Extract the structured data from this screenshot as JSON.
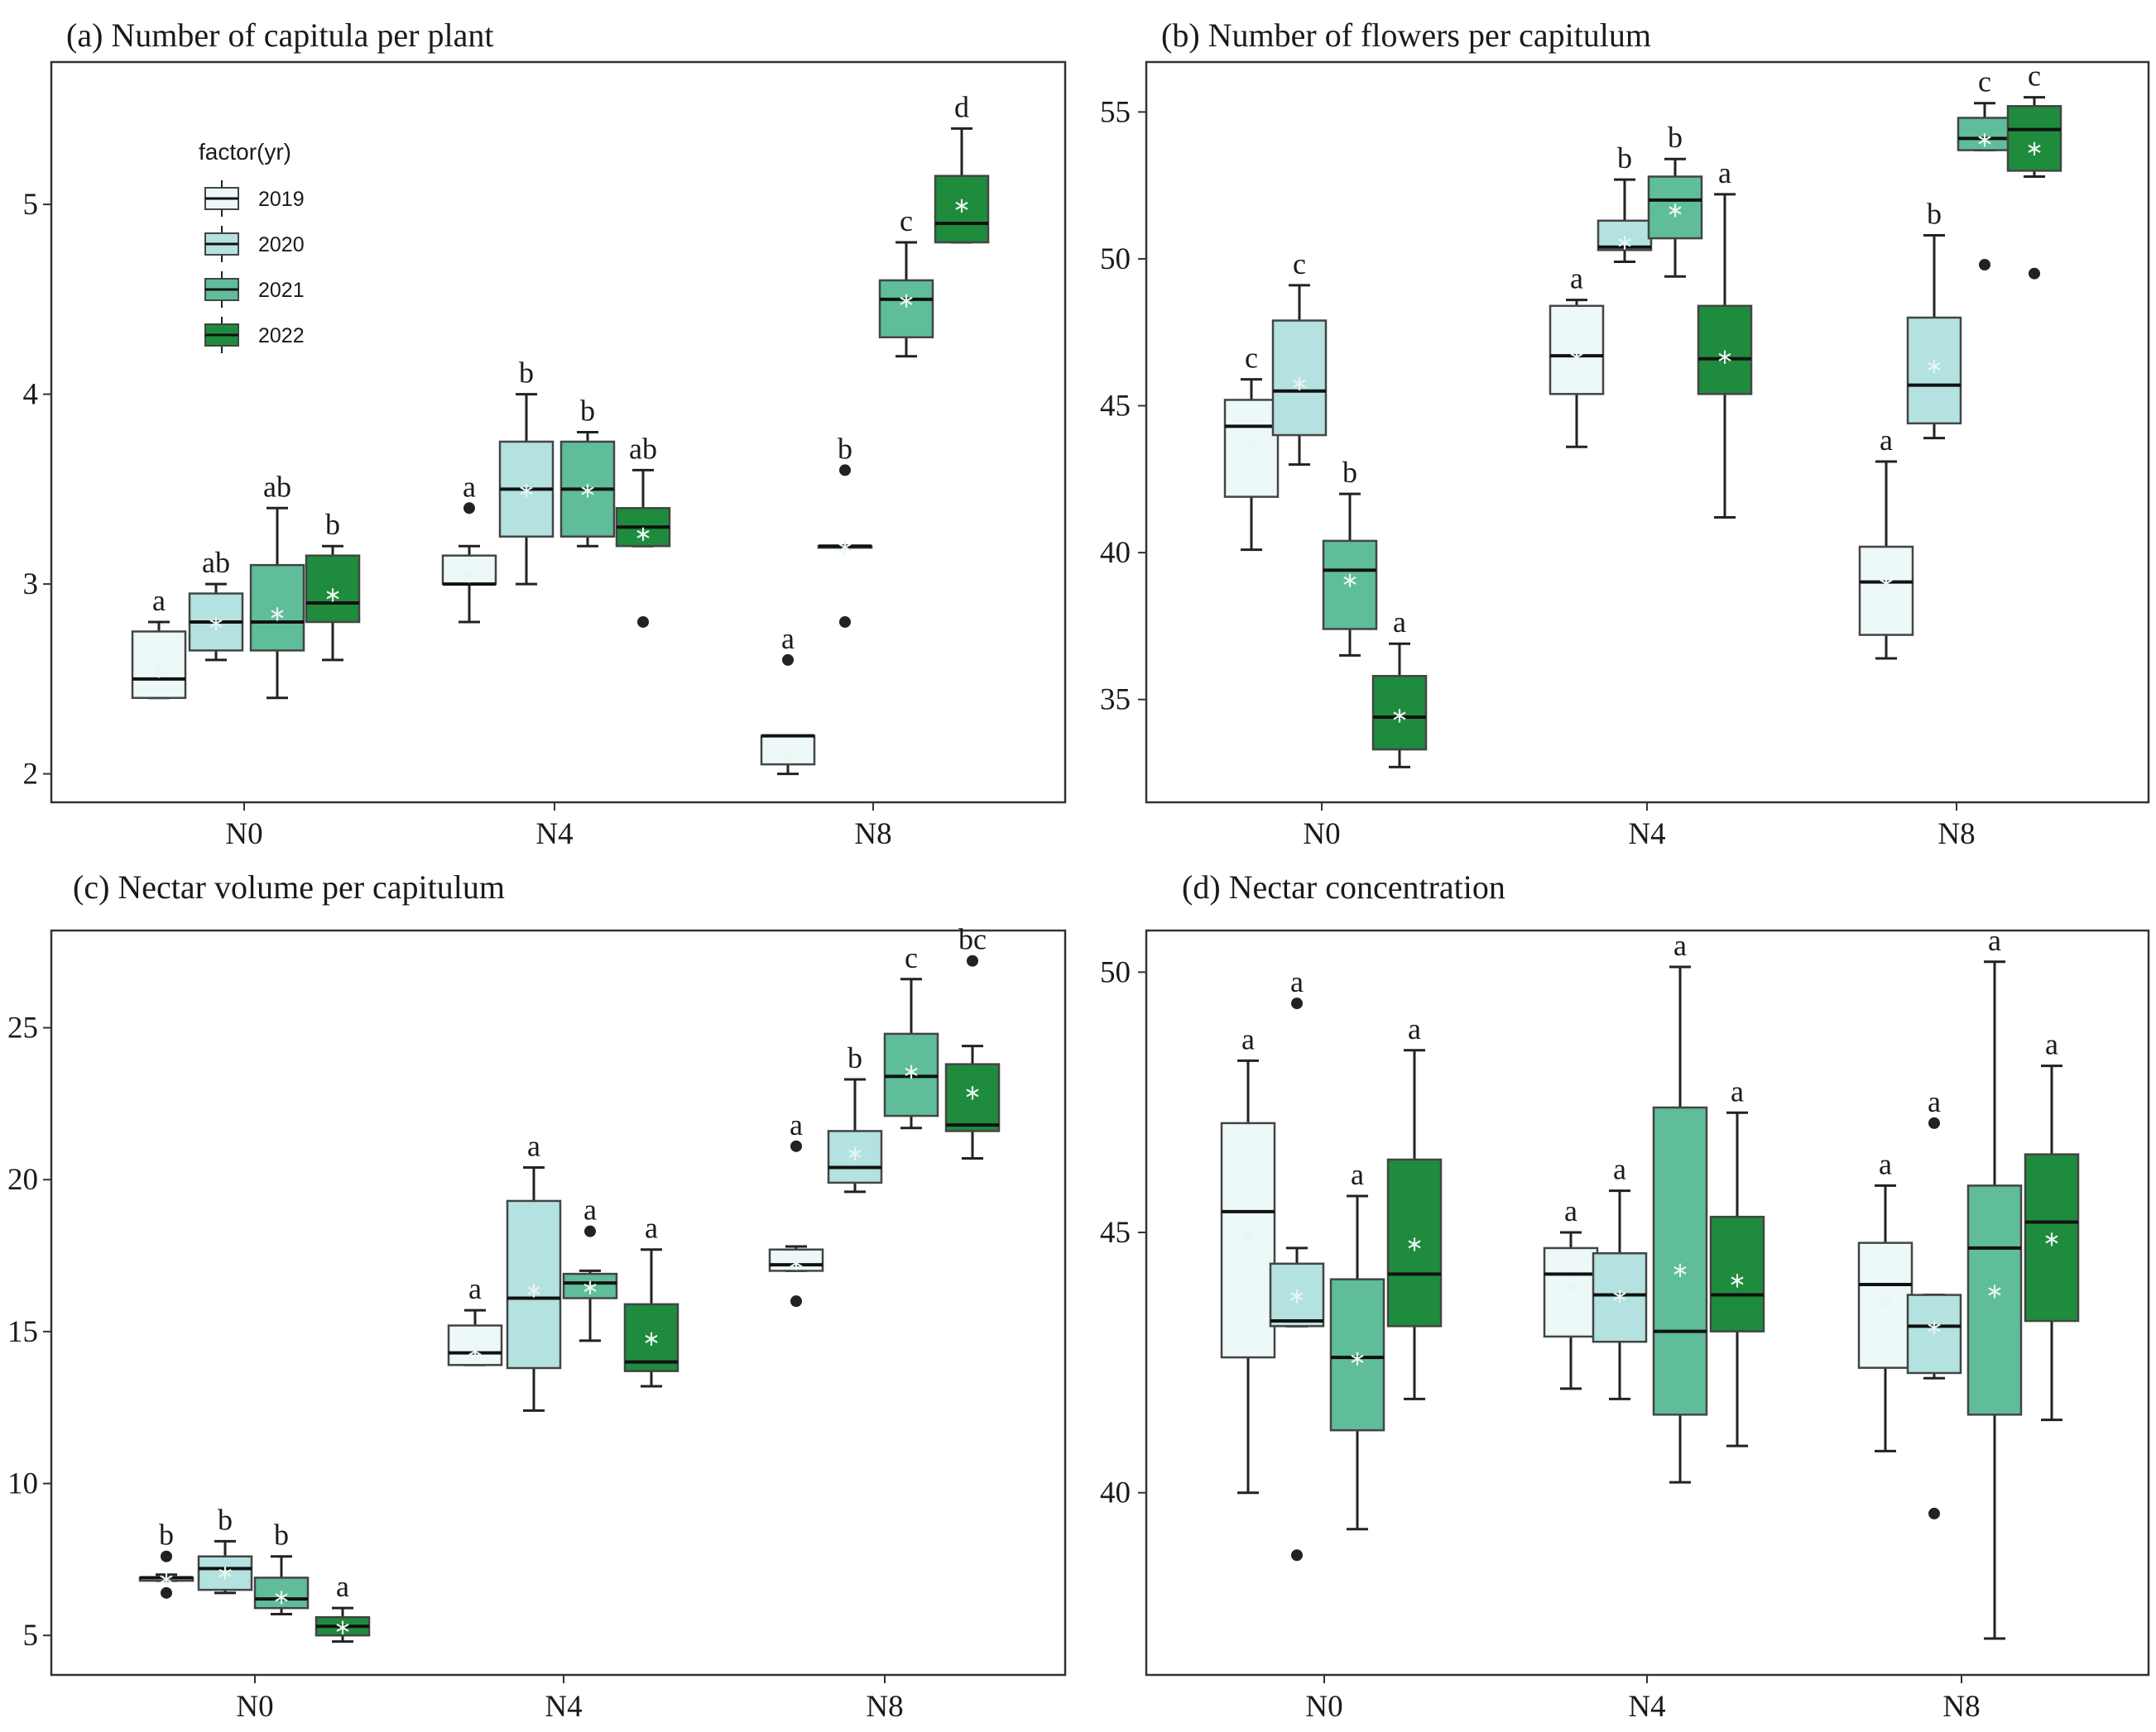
{
  "chart_data": [
    {
      "type": "boxplot",
      "title": "(a) Number of capitula per plant",
      "xlabel": "",
      "ylabel": "",
      "categories": [
        "N0",
        "N4",
        "N8"
      ],
      "ylim": [
        1.85,
        5.75
      ],
      "yticks": [
        "2",
        "3",
        "4",
        "5"
      ],
      "legend": {
        "title": "factor(yr)",
        "position": "top-left",
        "entries": [
          "2019",
          "2020",
          "2021",
          "2022"
        ]
      },
      "series": [
        {
          "name": "2019",
          "boxes": [
            {
              "q1": 2.4,
              "median": 2.5,
              "q3": 2.75,
              "min": 2.4,
              "max": 2.8,
              "mean": 2.55,
              "outliers": [],
              "letter": "a"
            },
            {
              "q1": 3.0,
              "median": 3.0,
              "q3": 3.15,
              "min": 2.8,
              "max": 3.2,
              "mean": 3.05,
              "outliers": [
                3.4
              ],
              "letter": "a"
            },
            {
              "q1": 2.05,
              "median": 2.2,
              "q3": 2.2,
              "min": 2.0,
              "max": 2.2,
              "mean": 2.1,
              "outliers": [
                2.6
              ],
              "letter": "a"
            }
          ]
        },
        {
          "name": "2020",
          "boxes": [
            {
              "q1": 2.65,
              "median": 2.8,
              "q3": 2.95,
              "min": 2.6,
              "max": 3.0,
              "mean": 2.8,
              "outliers": [],
              "letter": "ab"
            },
            {
              "q1": 3.25,
              "median": 3.5,
              "q3": 3.75,
              "min": 3.0,
              "max": 4.0,
              "mean": 3.5,
              "outliers": [],
              "letter": "b"
            },
            {
              "q1": 3.2,
              "median": 3.2,
              "q3": 3.2,
              "min": 3.2,
              "max": 3.2,
              "mean": 3.2,
              "outliers": [
                2.8,
                3.6
              ],
              "letter": "b"
            }
          ]
        },
        {
          "name": "2021",
          "boxes": [
            {
              "q1": 2.65,
              "median": 2.8,
              "q3": 3.1,
              "min": 2.4,
              "max": 3.4,
              "mean": 2.85,
              "outliers": [],
              "letter": "ab"
            },
            {
              "q1": 3.25,
              "median": 3.5,
              "q3": 3.75,
              "min": 3.2,
              "max": 3.8,
              "mean": 3.5,
              "outliers": [],
              "letter": "b"
            },
            {
              "q1": 4.3,
              "median": 4.5,
              "q3": 4.6,
              "min": 4.2,
              "max": 4.8,
              "mean": 4.5,
              "outliers": [],
              "letter": "c"
            }
          ]
        },
        {
          "name": "2022",
          "boxes": [
            {
              "q1": 2.8,
              "median": 2.9,
              "q3": 3.15,
              "min": 2.6,
              "max": 3.2,
              "mean": 2.95,
              "outliers": [],
              "letter": "b"
            },
            {
              "q1": 3.2,
              "median": 3.3,
              "q3": 3.4,
              "min": 3.2,
              "max": 3.6,
              "mean": 3.27,
              "outliers": [
                2.8
              ],
              "letter": "ab"
            },
            {
              "q1": 4.8,
              "median": 4.9,
              "q3": 5.15,
              "min": 4.8,
              "max": 5.4,
              "mean": 5.0,
              "outliers": [],
              "letter": "d"
            }
          ]
        }
      ]
    },
    {
      "type": "boxplot",
      "title": "(b) Number of flowers per capitulum",
      "xlabel": "",
      "ylabel": "",
      "categories": [
        "N0",
        "N4",
        "N8"
      ],
      "ylim": [
        31.5,
        56.7
      ],
      "yticks": [
        "35",
        "40",
        "45",
        "50",
        "55"
      ],
      "series": [
        {
          "name": "2019",
          "boxes": [
            {
              "q1": 41.9,
              "median": 44.3,
              "q3": 45.2,
              "min": 40.1,
              "max": 45.9,
              "mean": 43.8,
              "outliers": [],
              "letter": "c"
            },
            {
              "q1": 45.4,
              "median": 46.7,
              "q3": 48.4,
              "min": 43.6,
              "max": 48.6,
              "mean": 46.7,
              "outliers": [],
              "letter": "a"
            },
            {
              "q1": 37.2,
              "median": 39.0,
              "q3": 40.2,
              "min": 36.4,
              "max": 43.1,
              "mean": 39.0,
              "outliers": [],
              "letter": "a"
            }
          ]
        },
        {
          "name": "2020",
          "boxes": [
            {
              "q1": 44.0,
              "median": 45.5,
              "q3": 47.9,
              "min": 43.0,
              "max": 49.1,
              "mean": 45.8,
              "outliers": [],
              "letter": "c"
            },
            {
              "q1": 50.3,
              "median": 50.4,
              "q3": 51.3,
              "min": 49.9,
              "max": 52.7,
              "mean": 50.6,
              "outliers": [],
              "letter": "b"
            },
            {
              "q1": 44.4,
              "median": 45.7,
              "q3": 48.0,
              "min": 43.9,
              "max": 50.8,
              "mean": 46.4,
              "outliers": [],
              "letter": "b"
            }
          ]
        },
        {
          "name": "2021",
          "boxes": [
            {
              "q1": 37.4,
              "median": 39.4,
              "q3": 40.4,
              "min": 36.5,
              "max": 42.0,
              "mean": 39.1,
              "outliers": [],
              "letter": "b"
            },
            {
              "q1": 50.7,
              "median": 52.0,
              "q3": 52.8,
              "min": 49.4,
              "max": 53.4,
              "mean": 51.7,
              "outliers": [],
              "letter": "b"
            },
            {
              "q1": 53.7,
              "median": 54.1,
              "q3": 54.8,
              "min": 53.7,
              "max": 55.3,
              "mean": 54.1,
              "outliers": [
                49.8
              ],
              "letter": "c"
            }
          ]
        },
        {
          "name": "2022",
          "boxes": [
            {
              "q1": 33.3,
              "median": 34.4,
              "q3": 35.8,
              "min": 32.7,
              "max": 36.9,
              "mean": 34.5,
              "outliers": [],
              "letter": "a"
            },
            {
              "q1": 45.4,
              "median": 46.6,
              "q3": 48.4,
              "min": 41.2,
              "max": 52.2,
              "mean": 46.7,
              "outliers": [],
              "letter": "a"
            },
            {
              "q1": 53.0,
              "median": 54.4,
              "q3": 55.2,
              "min": 52.8,
              "max": 55.5,
              "mean": 53.8,
              "outliers": [
                49.5
              ],
              "letter": "c"
            }
          ]
        }
      ]
    },
    {
      "type": "boxplot",
      "title": "(c) Nectar volume per capitulum",
      "xlabel": "",
      "ylabel": "",
      "categories": [
        "N0",
        "N4",
        "N8"
      ],
      "ylim": [
        3.7,
        28.2
      ],
      "yticks": [
        "5",
        "10",
        "15",
        "20",
        "25"
      ],
      "series": [
        {
          "name": "2019",
          "boxes": [
            {
              "q1": 6.8,
              "median": 6.9,
              "q3": 6.9,
              "min": 6.8,
              "max": 7.0,
              "mean": 6.9,
              "outliers": [
                6.4,
                7.6
              ],
              "letter": "b"
            },
            {
              "q1": 13.9,
              "median": 14.3,
              "q3": 15.2,
              "min": 13.9,
              "max": 15.7,
              "mean": 14.4,
              "outliers": [],
              "letter": "a"
            },
            {
              "q1": 17.0,
              "median": 17.2,
              "q3": 17.7,
              "min": 17.0,
              "max": 17.8,
              "mean": 17.3,
              "outliers": [
                16.0,
                21.1
              ],
              "letter": "a"
            }
          ]
        },
        {
          "name": "2020",
          "boxes": [
            {
              "q1": 6.5,
              "median": 7.2,
              "q3": 7.6,
              "min": 6.4,
              "max": 8.1,
              "mean": 7.1,
              "outliers": [],
              "letter": "b"
            },
            {
              "q1": 13.8,
              "median": 16.1,
              "q3": 19.3,
              "min": 12.4,
              "max": 20.4,
              "mean": 16.4,
              "outliers": [],
              "letter": "a"
            },
            {
              "q1": 19.9,
              "median": 20.4,
              "q3": 21.6,
              "min": 19.6,
              "max": 23.3,
              "mean": 20.9,
              "outliers": [],
              "letter": "b"
            }
          ]
        },
        {
          "name": "2021",
          "boxes": [
            {
              "q1": 5.9,
              "median": 6.2,
              "q3": 6.9,
              "min": 5.7,
              "max": 7.6,
              "mean": 6.3,
              "outliers": [],
              "letter": "b"
            },
            {
              "q1": 16.1,
              "median": 16.6,
              "q3": 16.9,
              "min": 14.7,
              "max": 17.0,
              "mean": 16.5,
              "outliers": [
                18.3
              ],
              "letter": "a"
            },
            {
              "q1": 22.1,
              "median": 23.4,
              "q3": 24.8,
              "min": 21.7,
              "max": 26.6,
              "mean": 23.6,
              "outliers": [],
              "letter": "c"
            }
          ]
        },
        {
          "name": "2022",
          "boxes": [
            {
              "q1": 5.0,
              "median": 5.3,
              "q3": 5.6,
              "min": 4.8,
              "max": 5.9,
              "mean": 5.3,
              "outliers": [],
              "letter": "a"
            },
            {
              "q1": 13.7,
              "median": 14.0,
              "q3": 15.9,
              "min": 13.2,
              "max": 17.7,
              "mean": 14.8,
              "outliers": [],
              "letter": "a"
            },
            {
              "q1": 21.6,
              "median": 21.8,
              "q3": 23.8,
              "min": 20.7,
              "max": 24.4,
              "mean": 22.9,
              "outliers": [
                27.2
              ],
              "letter": "bc"
            }
          ]
        }
      ]
    },
    {
      "type": "boxplot",
      "title": "(d) Nectar concentration",
      "xlabel": "",
      "ylabel": "",
      "categories": [
        "N0",
        "N4",
        "N8"
      ],
      "ylim": [
        36.5,
        50.8
      ],
      "yticks": [
        "40",
        "45",
        "50"
      ],
      "series": [
        {
          "name": "2019",
          "boxes": [
            {
              "q1": 42.6,
              "median": 45.4,
              "q3": 47.1,
              "min": 40.0,
              "max": 48.3,
              "mean": 45.0,
              "outliers": [],
              "letter": "a"
            },
            {
              "q1": 43.0,
              "median": 44.2,
              "q3": 44.7,
              "min": 42.0,
              "max": 45.0,
              "mean": 44.0,
              "outliers": [],
              "letter": "a"
            },
            {
              "q1": 42.4,
              "median": 44.0,
              "q3": 44.8,
              "min": 40.8,
              "max": 45.9,
              "mean": 43.7,
              "outliers": [],
              "letter": "a"
            }
          ]
        },
        {
          "name": "2020",
          "boxes": [
            {
              "q1": 43.2,
              "median": 43.3,
              "q3": 44.4,
              "min": 43.2,
              "max": 44.7,
              "mean": 43.8,
              "outliers": [
                38.8,
                49.4
              ],
              "letter": "a"
            },
            {
              "q1": 42.9,
              "median": 43.8,
              "q3": 44.6,
              "min": 41.8,
              "max": 45.8,
              "mean": 43.8,
              "outliers": [],
              "letter": "a"
            },
            {
              "q1": 42.3,
              "median": 43.2,
              "q3": 43.8,
              "min": 42.2,
              "max": 43.8,
              "mean": 43.2,
              "outliers": [
                39.6,
                47.1
              ],
              "letter": "a"
            }
          ]
        },
        {
          "name": "2021",
          "boxes": [
            {
              "q1": 41.2,
              "median": 42.6,
              "q3": 44.1,
              "min": 39.3,
              "max": 45.7,
              "mean": 42.6,
              "outliers": [],
              "letter": "a"
            },
            {
              "q1": 41.5,
              "median": 43.1,
              "q3": 47.4,
              "min": 40.2,
              "max": 50.1,
              "mean": 44.3,
              "outliers": [],
              "letter": "a"
            },
            {
              "q1": 41.5,
              "median": 44.7,
              "q3": 45.9,
              "min": 37.2,
              "max": 50.2,
              "mean": 43.9,
              "outliers": [],
              "letter": "a"
            }
          ]
        },
        {
          "name": "2022",
          "boxes": [
            {
              "q1": 43.2,
              "median": 44.2,
              "q3": 46.4,
              "min": 41.8,
              "max": 48.5,
              "mean": 44.8,
              "outliers": [],
              "letter": "a"
            },
            {
              "q1": 43.1,
              "median": 43.8,
              "q3": 45.3,
              "min": 40.9,
              "max": 47.3,
              "mean": 44.1,
              "outliers": [],
              "letter": "a"
            },
            {
              "q1": 43.3,
              "median": 45.2,
              "q3": 46.5,
              "min": 41.4,
              "max": 48.2,
              "mean": 44.9,
              "outliers": [],
              "letter": "a"
            }
          ]
        }
      ]
    }
  ],
  "colors": {
    "2019": "#edf8f8",
    "2020": "#b3e2e0",
    "2021": "#5fbd9a",
    "2022": "#1f8b3d",
    "stroke": "#222222",
    "mean_marker": "#e8f5f0"
  }
}
